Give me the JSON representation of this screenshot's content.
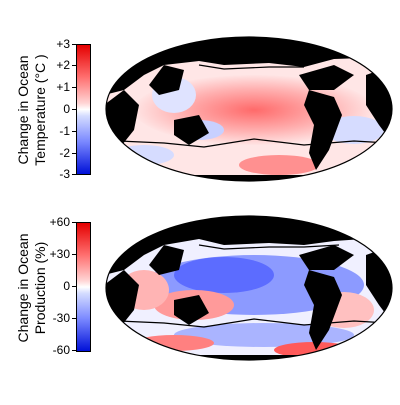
{
  "panels": [
    {
      "label_lines": [
        "Change in Ocean",
        "Temperature (°C )"
      ],
      "ticks": [
        "+3",
        "+2",
        "+1",
        "0",
        "-1",
        "-2",
        "-3"
      ]
    },
    {
      "label_lines": [
        "Change in Ocean",
        "Production (%)"
      ],
      "ticks": [
        "+60",
        "+30",
        "0",
        "-30",
        "-60"
      ]
    }
  ],
  "colors": {
    "positive": "#e40000",
    "negative": "#0010d8",
    "land": "#000000",
    "zero": "#ffffff"
  }
}
